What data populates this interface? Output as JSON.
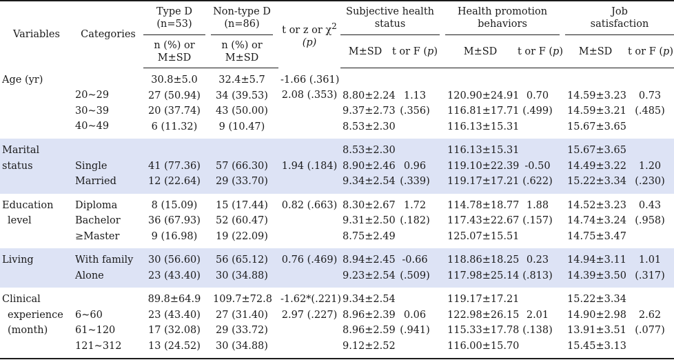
{
  "header": {
    "variables": "Variables",
    "categories": "Categories",
    "type_d": "Type D",
    "type_d_n": "(n=53)",
    "non_type_d": "Non-type D",
    "non_type_d_n": "(n=86)",
    "test_label": "t or z or χ",
    "test_sup": "2",
    "test_p": "(p)",
    "subjective_l1": "Subjective health",
    "subjective_l2": "status",
    "hpb_l1": "Health promotion",
    "hpb_l2": "behaviors",
    "job_l1": "Job",
    "job_l2": "satisfaction",
    "n_pct_l1": "n (%) or",
    "n_pct_l2": "M±SD",
    "msd": "M±SD",
    "tf_label": "t or F (",
    "tf_p": "p",
    "tf_close": ")"
  },
  "groups": [
    {
      "variable": [
        "Age (yr)"
      ],
      "shaded": false,
      "categories": [
        "",
        "20~29",
        "30~39",
        "40~49"
      ],
      "type_d": [
        "30.8±5.0",
        "27 (50.94)",
        "20 (37.74)",
        "6 (11.32)"
      ],
      "non_type_d": [
        "32.4±5.7",
        "34 (39.53)",
        "43 (50.00)",
        "9 (10.47)"
      ],
      "test": [
        "-1.66 (.361)",
        "2.08 (.353)",
        "",
        ""
      ],
      "subj_msd": [
        "",
        "8.80±2.24",
        "9.37±2.73",
        "8.53±2.30"
      ],
      "subj_tf": [
        "",
        "1.13",
        "(.356)",
        ""
      ],
      "hpb_msd": [
        "",
        "120.90±24.91",
        "116.81±17.71",
        "116.13±15.31"
      ],
      "hpb_tf": [
        "",
        "0.70",
        "(.499)",
        ""
      ],
      "job_msd": [
        "",
        "14.59±3.23",
        "14.59±3.21",
        "15.67±3.65"
      ],
      "job_tf": [
        "",
        "0.73",
        "(.485)",
        ""
      ]
    },
    {
      "variable": [
        "Marital",
        "status"
      ],
      "shaded": true,
      "categories": [
        "",
        "Single",
        "Married"
      ],
      "type_d": [
        "",
        "41 (77.36)",
        "12 (22.64)"
      ],
      "non_type_d": [
        "",
        "57 (66.30)",
        "29 (33.70)"
      ],
      "test": [
        "",
        "1.94 (.184)",
        ""
      ],
      "subj_msd": [
        "8.53±2.30",
        "8.90±2.46",
        "9.34±2.54"
      ],
      "subj_tf": [
        "",
        "0.96",
        "(.339)"
      ],
      "hpb_msd": [
        "116.13±15.31",
        "119.10±22.39",
        "119.17±17.21"
      ],
      "hpb_tf": [
        "",
        "-0.50",
        "(.622)"
      ],
      "job_msd": [
        "15.67±3.65",
        "14.49±3.22",
        "15.22±3.34"
      ],
      "job_tf": [
        "",
        "1.20",
        "(.230)"
      ]
    },
    {
      "variable": [
        "Education",
        "level"
      ],
      "shaded": false,
      "categories": [
        "Diploma",
        "Bachelor",
        "≥Master"
      ],
      "type_d": [
        "8 (15.09)",
        "36 (67.93)",
        "9 (16.98)"
      ],
      "non_type_d": [
        "15 (17.44)",
        "52 (60.47)",
        "19 (22.09)"
      ],
      "test": [
        "0.82 (.663)",
        "",
        ""
      ],
      "subj_msd": [
        "8.30±2.67",
        "9.31±2.50",
        "8.75±2.49"
      ],
      "subj_tf": [
        "1.72",
        "(.182)",
        ""
      ],
      "hpb_msd": [
        "114.78±18.77",
        "117.43±22.67",
        "125.07±15.51"
      ],
      "hpb_tf": [
        "1.88",
        "(.157)",
        ""
      ],
      "job_msd": [
        "14.52±3.23",
        "14.74±3.24",
        "14.75±3.47"
      ],
      "job_tf": [
        "0.43",
        "(.958)",
        ""
      ]
    },
    {
      "variable": [
        "Living"
      ],
      "shaded": true,
      "categories": [
        "With family",
        "Alone"
      ],
      "type_d": [
        "30 (56.60)",
        "23 (43.40)"
      ],
      "non_type_d": [
        "56 (65.12)",
        "30 (34.88)"
      ],
      "test": [
        "0.76 (.469)",
        ""
      ],
      "subj_msd": [
        "8.94±2.45",
        "9.23±2.54"
      ],
      "subj_tf": [
        "-0.66",
        "(.509)"
      ],
      "hpb_msd": [
        "118.86±18.25",
        "117.98±25.14"
      ],
      "hpb_tf": [
        "0.23",
        "(.813)"
      ],
      "job_msd": [
        "14.94±3.11",
        "14.39±3.50"
      ],
      "job_tf": [
        "1.01",
        "(.317)"
      ]
    },
    {
      "variable": [
        "Clinical",
        "experience",
        "(month)"
      ],
      "shaded": false,
      "categories": [
        "",
        "6~60",
        "61~120",
        "121~312"
      ],
      "type_d": [
        "89.8±64.9",
        "23 (43.40)",
        "17 (32.08)",
        "13 (24.52)"
      ],
      "non_type_d": [
        "109.7±72.8",
        "27 (31.40)",
        "29 (33.72)",
        "30 (34.88)"
      ],
      "test": [
        "-1.62*(.221)",
        "2.97 (.227)",
        "",
        ""
      ],
      "subj_msd": [
        "9.34±2.54",
        "8.96±2.39",
        "8.96±2.59",
        "9.12±2.52"
      ],
      "subj_tf": [
        "",
        "0.06",
        "(.941)",
        ""
      ],
      "hpb_msd": [
        "119.17±17.21",
        "122.98±26.15",
        "115.33±17.78",
        "116.00±15.70"
      ],
      "hpb_tf": [
        "",
        "2.01",
        "(.138)",
        ""
      ],
      "job_msd": [
        "15.22±3.34",
        "14.90±2.98",
        "13.91±3.51",
        "15.45±3.13"
      ],
      "job_tf": [
        "",
        "2.62",
        "(.077)",
        ""
      ]
    }
  ]
}
